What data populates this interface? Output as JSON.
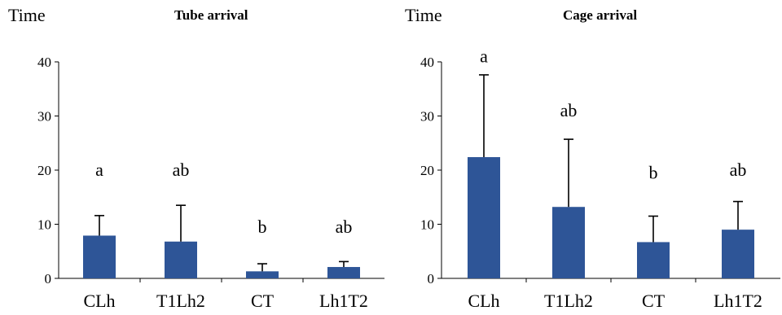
{
  "charts": [
    {
      "chart_data": {
        "type": "bar",
        "title": "Tube arrival",
        "ylabel": "Time",
        "xlabel": "",
        "categories": [
          "CLh",
          "T1Lh2",
          "CT",
          "Lh1T2"
        ],
        "values": [
          7.9,
          6.8,
          1.3,
          2.1
        ],
        "errors": [
          3.7,
          6.7,
          1.4,
          1.0
        ],
        "letters": [
          "a",
          "ab",
          "b",
          "ab"
        ],
        "ylim": [
          0,
          40
        ],
        "yticks": [
          0,
          10,
          20,
          30,
          40
        ],
        "letter_values": [
          20,
          20,
          9.5,
          9.5
        ],
        "grid": false,
        "legend": "none",
        "bar_color": "#2E5597"
      }
    },
    {
      "chart_data": {
        "type": "bar",
        "title": "Cage arrival",
        "ylabel": "Time",
        "xlabel": "",
        "categories": [
          "CLh",
          "T1Lh2",
          "CT",
          "Lh1T2"
        ],
        "values": [
          22.4,
          13.2,
          6.7,
          9.0
        ],
        "errors": [
          15.2,
          12.5,
          4.8,
          5.2
        ],
        "letters": [
          "a",
          "ab",
          "b",
          "ab"
        ],
        "ylim": [
          0,
          40
        ],
        "yticks": [
          0,
          10,
          20,
          30,
          40
        ],
        "letter_values": [
          41,
          31,
          19.5,
          20
        ],
        "grid": false,
        "legend": "none",
        "bar_color": "#2E5597"
      }
    }
  ]
}
